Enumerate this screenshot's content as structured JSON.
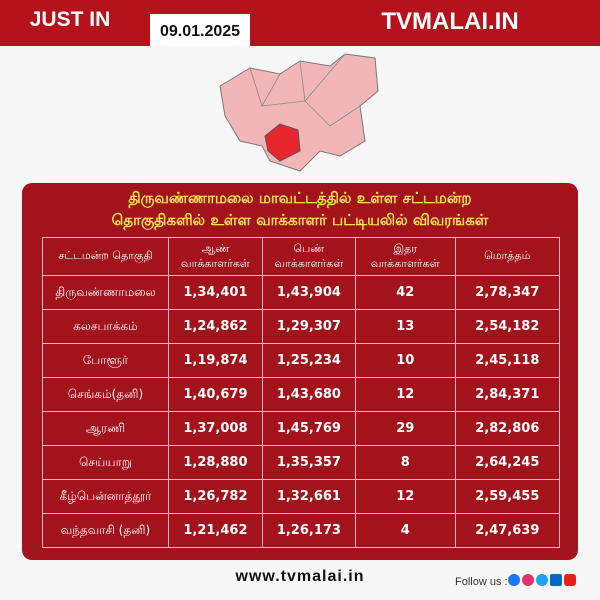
{
  "header": {
    "tag": "JUST IN",
    "date": "09.01.2025",
    "brand": "TVMALAI.IN"
  },
  "panel": {
    "title_lines": [
      "திருவண்ணாமலை மாவட்டத்தில் உள்ள சட்டமன்ற",
      "தொகுதிகளில் உள்ள வாக்காளர் பட்டியலில் விவரங்கள்"
    ],
    "table": {
      "headers": [
        [
          "சட்டமன்ற தொகுதி"
        ],
        [
          "ஆண்",
          "வாக்காளர்கள்"
        ],
        [
          "பெண்",
          "வாக்காளர்கள்"
        ],
        [
          "இதர",
          "வாக்காளர்கள்"
        ],
        [
          "மொத்தம்"
        ]
      ],
      "rows": [
        [
          "திருவண்ணாமலை",
          "1,34,401",
          "1,43,904",
          "42",
          "2,78,347"
        ],
        [
          "கலசபாக்கம்",
          "1,24,862",
          "1,29,307",
          "13",
          "2,54,182"
        ],
        [
          "போளூர்",
          "1,19,874",
          "1,25,234",
          "10",
          "2,45,118"
        ],
        [
          "செங்கம்(தனி)",
          "1,40,679",
          "1,43,680",
          "12",
          "2,84,371"
        ],
        [
          "ஆரணி",
          "1,37,008",
          "1,45,769",
          "29",
          "2,82,806"
        ],
        [
          "செய்யாறு",
          "1,28,880",
          "1,35,357",
          "8",
          "2,64,245"
        ],
        [
          "கீழ்பென்னாத்தூர்",
          "1,26,782",
          "1,32,661",
          "12",
          "2,59,455"
        ],
        [
          "வந்தவாசி (தனி)",
          "1,21,462",
          "1,26,173",
          "4",
          "2,47,639"
        ]
      ]
    }
  },
  "footer": {
    "website": "www.tvmalai.in",
    "follow": "Follow us :"
  }
}
